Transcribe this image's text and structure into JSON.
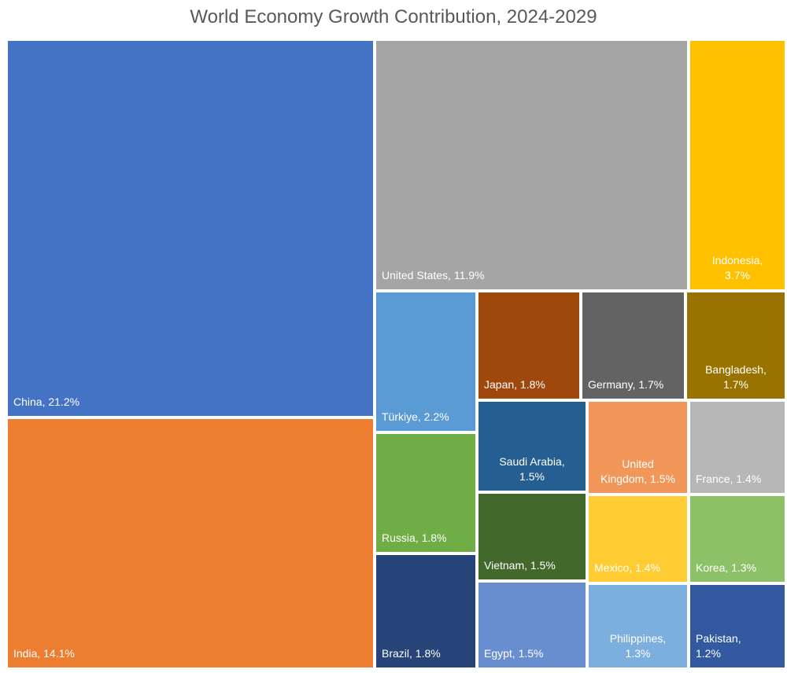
{
  "chart_data": {
    "type": "treemap",
    "title": "World Economy Growth Contribution, 2024-2029",
    "items": [
      {
        "name": "China",
        "value": 21.2,
        "label": "China, 21.2%",
        "color": "#4472C4"
      },
      {
        "name": "India",
        "value": 14.1,
        "label": "India, 14.1%",
        "color": "#ED7D31"
      },
      {
        "name": "United States",
        "value": 11.9,
        "label": "United States, 11.9%",
        "color": "#A5A5A5"
      },
      {
        "name": "Indonesia",
        "value": 3.7,
        "label": "Indonesia,\n3.7%",
        "color": "#FFC000"
      },
      {
        "name": "Türkiye",
        "value": 2.2,
        "label": "Türkiye, 2.2%",
        "color": "#5B9BD5"
      },
      {
        "name": "Japan",
        "value": 1.8,
        "label": "Japan, 1.8%",
        "color": "#9E480E"
      },
      {
        "name": "Germany",
        "value": 1.7,
        "label": "Germany, 1.7%",
        "color": "#636363"
      },
      {
        "name": "Bangladesh",
        "value": 1.7,
        "label": "Bangladesh,\n1.7%",
        "color": "#997300"
      },
      {
        "name": "Russia",
        "value": 1.8,
        "label": "Russia, 1.8%",
        "color": "#70AD47"
      },
      {
        "name": "Brazil",
        "value": 1.8,
        "label": "Brazil, 1.8%",
        "color": "#264478"
      },
      {
        "name": "Saudi Arabia",
        "value": 1.5,
        "label": "Saudi Arabia,\n1.5%",
        "color": "#255E91"
      },
      {
        "name": "United Kingdom",
        "value": 1.5,
        "label": "United\nKingdom, 1.5%",
        "color": "#F1975A"
      },
      {
        "name": "France",
        "value": 1.4,
        "label": "France, 1.4%",
        "color": "#B7B7B7"
      },
      {
        "name": "Vietnam",
        "value": 1.5,
        "label": "Vietnam, 1.5%",
        "color": "#43682B"
      },
      {
        "name": "Mexico",
        "value": 1.4,
        "label": "Mexico, 1.4%",
        "color": "#FFCD33"
      },
      {
        "name": "Korea",
        "value": 1.3,
        "label": "Korea, 1.3%",
        "color": "#8CC168"
      },
      {
        "name": "Egypt",
        "value": 1.5,
        "label": "Egypt, 1.5%",
        "color": "#698ED0"
      },
      {
        "name": "Philippines",
        "value": 1.3,
        "label": "Philippines,\n1.3%",
        "color": "#7CAFDD"
      },
      {
        "name": "Pakistan",
        "value": 1.2,
        "label": "Pakistan,\n1.2%",
        "color": "#335AA1"
      }
    ]
  }
}
